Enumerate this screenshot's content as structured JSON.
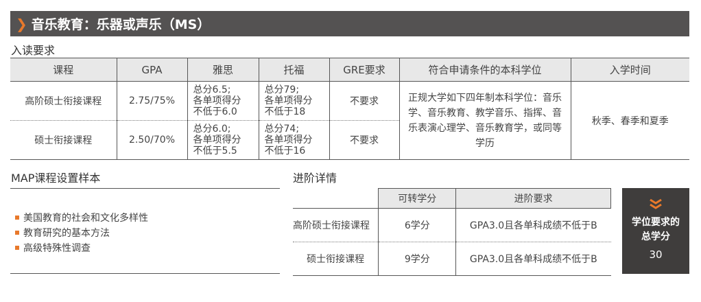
{
  "title": "音乐教育：乐器或声乐（MS）",
  "admission": {
    "heading": "入读要求",
    "headers": [
      "课程",
      "GPA",
      "雅思",
      "托福",
      "GRE要求",
      "符合申请条件的本科学位",
      "入学时间"
    ],
    "rows": [
      {
        "program": "高阶硕士衔接课程",
        "gpa": "2.75/75%",
        "ielts": [
          "总分6.5;",
          "各单项得分",
          "不低于6.0"
        ],
        "toefl": [
          "总分79;",
          "各单项得分",
          "不低于18"
        ],
        "gre": "不要求"
      },
      {
        "program": "硕士衔接课程",
        "gpa": "2.50/70%",
        "ielts": [
          "总分6.0;",
          "各单项得分",
          "不低于5.5"
        ],
        "toefl": [
          "总分74;",
          "各单项得分",
          "不低于16"
        ],
        "gre": "不要求"
      }
    ],
    "degree": "正规大学如下四年制本科学位：音乐学、音乐教育、教学音乐、指挥、音乐表演心理学、音乐教育学，或同等学历",
    "intake": "秋季、春季和夏季"
  },
  "map": {
    "heading": "MAP课程设置样本",
    "items": [
      "美国教育的社会和文化多样性",
      "教育研究的基本方法",
      "高级特殊性调查"
    ]
  },
  "progress": {
    "heading": "进阶详情",
    "headers": [
      "",
      "可转学分",
      "进阶要求"
    ],
    "rows": [
      {
        "program": "高阶硕士衔接课程",
        "credits": "6学分",
        "req": "GPA3.0且各单科成绩不低于B"
      },
      {
        "program": "硕士衔接课程",
        "credits": "9学分",
        "req": "GPA3.0且各单科成绩不低于B"
      }
    ]
  },
  "total": {
    "label": "学位要求的总学分",
    "value": "30",
    "icon": "double-chevron-down-icon"
  },
  "colors": {
    "accent": "#e8792b",
    "dark": "#545252"
  }
}
